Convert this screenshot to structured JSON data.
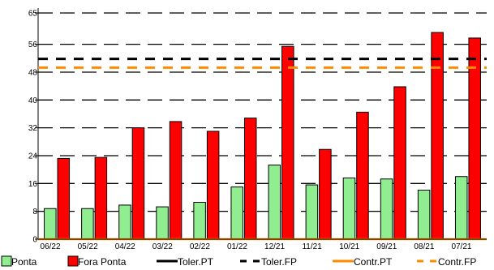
{
  "chart_data": {
    "type": "bar",
    "categories": [
      "06/22",
      "05/22",
      "04/22",
      "03/22",
      "02/22",
      "01/22",
      "12/21",
      "11/21",
      "10/21",
      "09/21",
      "08/21",
      "07/21"
    ],
    "series": [
      {
        "name": "Ponta",
        "color": "#90ee90",
        "values": [
          8.8,
          8.8,
          9.8,
          9.3,
          10.6,
          15.0,
          21.3,
          15.6,
          17.6,
          17.3,
          14.1,
          18.0
        ]
      },
      {
        "name": "Fora Ponta",
        "color": "#ff0000",
        "values": [
          23.2,
          23.5,
          32.0,
          33.8,
          31.0,
          34.8,
          55.4,
          25.8,
          36.5,
          43.8,
          59.4,
          57.8
        ]
      }
    ],
    "reference_lines": [
      {
        "name": "Toler.PT",
        "color": "#000000",
        "style": "solid",
        "value": null
      },
      {
        "name": "Toler.FP",
        "color": "#000000",
        "style": "dashed",
        "value": 51.8
      },
      {
        "name": "Contr.PT",
        "color": "#ff8c00",
        "style": "solid",
        "value": 0
      },
      {
        "name": "Contr.FP",
        "color": "#ff8c00",
        "style": "dashed",
        "value": 49.3
      }
    ],
    "yticks": [
      0,
      8,
      16,
      24,
      32,
      40,
      48,
      56,
      65
    ],
    "ylim": [
      0,
      65
    ],
    "grid": "horizontal dashed",
    "legend_position": "bottom",
    "title": "",
    "xlabel": "",
    "ylabel": ""
  }
}
